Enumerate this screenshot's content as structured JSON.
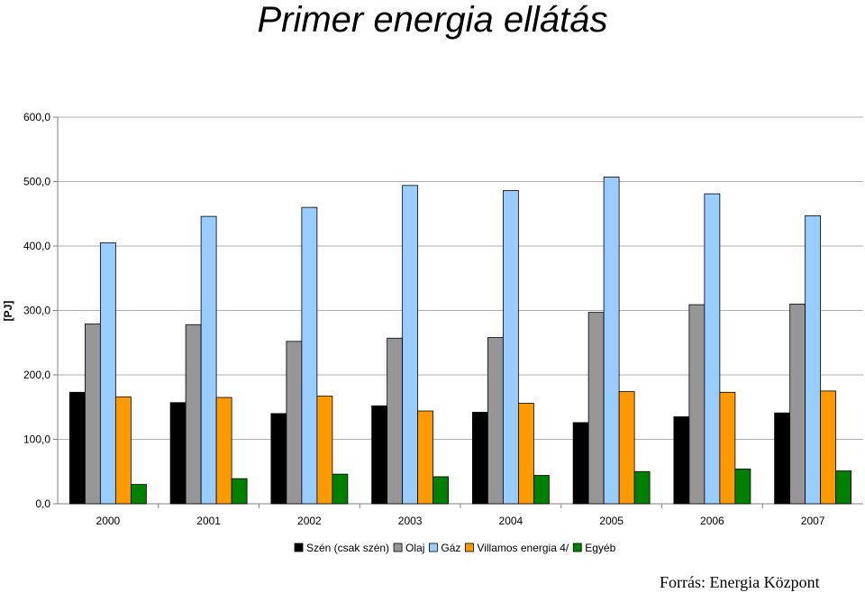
{
  "title": "Primer energia ellátás",
  "source": "Forrás: Energia Központ",
  "chart_data": {
    "type": "bar",
    "title": "Primer energia ellátás",
    "ylabel": "[PJ]",
    "xlabel": "",
    "ylim": [
      0,
      600
    ],
    "y_ticks": [
      "0,0",
      "100,0",
      "200,0",
      "300,0",
      "400,0",
      "500,0",
      "600,0"
    ],
    "y_tick_values": [
      0,
      100,
      200,
      300,
      400,
      500,
      600
    ],
    "grid": true,
    "legend_position": "bottom",
    "categories": [
      "2000",
      "2001",
      "2002",
      "2003",
      "2004",
      "2005",
      "2006",
      "2007"
    ],
    "series": [
      {
        "name": "Szén (csak szén)",
        "color": "#000000",
        "values": [
          173,
          157,
          140,
          152,
          142,
          126,
          135,
          141
        ]
      },
      {
        "name": "Olaj",
        "color": "#969696",
        "values": [
          279,
          278,
          252,
          257,
          258,
          297,
          309,
          310
        ]
      },
      {
        "name": "Gáz",
        "color": "#99ccff",
        "values": [
          405,
          446,
          460,
          494,
          486,
          507,
          481,
          447
        ]
      },
      {
        "name": "Villamos energia 4/",
        "color": "#ff9900",
        "values": [
          166,
          165,
          167,
          144,
          156,
          174,
          173,
          175
        ]
      },
      {
        "name": "Egyéb",
        "color": "#008000",
        "values": [
          30,
          39,
          46,
          42,
          44,
          50,
          54,
          51
        ]
      }
    ]
  }
}
